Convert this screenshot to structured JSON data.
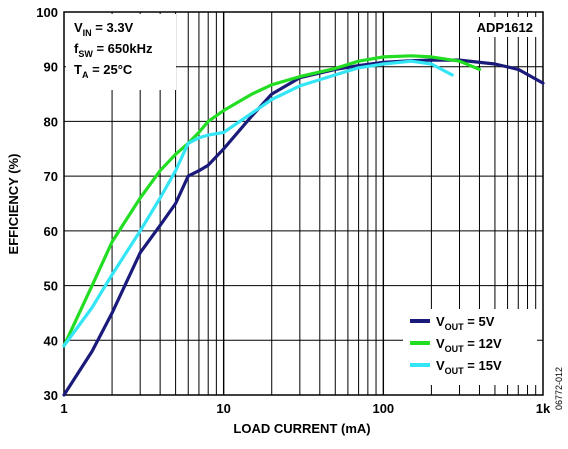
{
  "chart_data": {
    "type": "line",
    "title": "",
    "xlabel": "LOAD CURRENT (mA)",
    "ylabel": "EFFICIENCY (%)",
    "xscale": "log",
    "xlim": [
      1,
      1000
    ],
    "ylim": [
      30,
      100
    ],
    "grid": true,
    "x_ticks": [
      {
        "value": 1,
        "label": "1"
      },
      {
        "value": 10,
        "label": "10"
      },
      {
        "value": 100,
        "label": "100"
      },
      {
        "value": 1000,
        "label": "1k"
      }
    ],
    "y_ticks": [
      30,
      40,
      50,
      60,
      70,
      80,
      90,
      100
    ],
    "annotations": {
      "vin": {
        "main": "V",
        "sub": "IN",
        "rest": " = 3.3V"
      },
      "fsw": {
        "main": "f",
        "sub": "SW",
        "rest": " = 650kHz"
      },
      "ta": {
        "main": "T",
        "sub": "A",
        "rest": " = 25°C"
      },
      "part": "ADP1612"
    },
    "legend_position": "bottom-right",
    "series": [
      {
        "name": "VOUT = 5V",
        "label": {
          "main": "V",
          "sub": "OUT",
          "rest": " = 5V"
        },
        "color": "#1a1a7a",
        "x": [
          1,
          1.5,
          2,
          3,
          4,
          5,
          6,
          7,
          8,
          10,
          15,
          20,
          30,
          50,
          70,
          100,
          150,
          200,
          300,
          500,
          700,
          1000
        ],
        "y": [
          30,
          38,
          45,
          56,
          61,
          65,
          70,
          71,
          72,
          75,
          81,
          85,
          88,
          89.5,
          90.2,
          90.8,
          91.1,
          91.2,
          91.2,
          90.5,
          89.5,
          87
        ]
      },
      {
        "name": "VOUT = 12V",
        "label": {
          "main": "V",
          "sub": "OUT",
          "rest": " = 12V"
        },
        "color": "#22dd22",
        "x": [
          1,
          1.5,
          2,
          3,
          4,
          5,
          6,
          7,
          8,
          10,
          15,
          20,
          30,
          50,
          70,
          100,
          150,
          200,
          300,
          400
        ],
        "y": [
          39,
          50,
          58,
          66,
          71,
          74,
          76,
          78,
          80,
          82,
          85,
          86.7,
          88.2,
          89.7,
          91,
          91.8,
          92,
          91.8,
          91,
          89.5
        ]
      },
      {
        "name": "VOUT = 15V",
        "label": {
          "main": "V",
          "sub": "OUT",
          "rest": " = 15V"
        },
        "color": "#33e5f5",
        "x": [
          1,
          1.5,
          2,
          3,
          4,
          5,
          6,
          7,
          8,
          10,
          15,
          20,
          30,
          50,
          70,
          100,
          150,
          200,
          270
        ],
        "y": [
          39,
          46,
          52,
          60,
          66,
          71,
          76,
          77,
          77.5,
          78,
          81.5,
          84,
          86.5,
          88.5,
          89.8,
          90.5,
          91,
          90.5,
          88.5
        ]
      }
    ]
  },
  "figure_id": "06772-012"
}
